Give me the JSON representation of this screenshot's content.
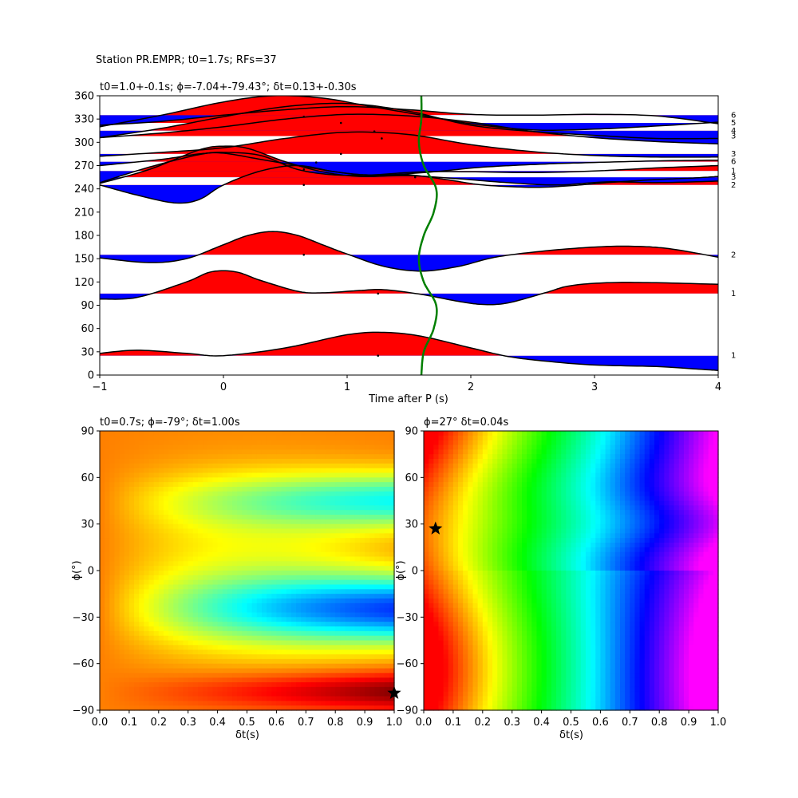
{
  "suptitle": "Station PR.EMPR; t0=1.7s; RFs=37",
  "chart_data": [
    {
      "type": "line",
      "title": "t0=1.0+-0.1s; ϕ=-7.04+-79.43°; δt=0.13+-0.30s",
      "xlabel": "Time after P (s)",
      "ylabel": "",
      "xlim": [
        -1,
        4
      ],
      "ylim": [
        0,
        360
      ],
      "x_ticks": [
        "−1",
        "0",
        "1",
        "2",
        "3",
        "4"
      ],
      "y_ticks": [
        "0",
        "30",
        "60",
        "90",
        "120",
        "150",
        "180",
        "210",
        "240",
        "270",
        "300",
        "330",
        "360"
      ],
      "traces": [
        {
          "baseline": 25,
          "count": "1",
          "pts": [
            [
              -1,
              28
            ],
            [
              -0.7,
              32
            ],
            [
              -0.3,
              28
            ],
            [
              0,
              25
            ],
            [
              0.5,
              35
            ],
            [
              1,
              52
            ],
            [
              1.3,
              55
            ],
            [
              1.6,
              50
            ],
            [
              2,
              35
            ],
            [
              2.3,
              24
            ],
            [
              2.6,
              18
            ],
            [
              3,
              13
            ],
            [
              3.5,
              11
            ],
            [
              3.8,
              8
            ],
            [
              4,
              6
            ]
          ]
        },
        {
          "baseline": 105,
          "count": "1",
          "pts": [
            [
              -1,
              98
            ],
            [
              -0.7,
              100
            ],
            [
              -0.3,
              120
            ],
            [
              -0.1,
              133
            ],
            [
              0.1,
              133
            ],
            [
              0.3,
              122
            ],
            [
              0.6,
              108
            ],
            [
              0.8,
              106
            ],
            [
              1.1,
              109
            ],
            [
              1.3,
              110
            ],
            [
              1.6,
              104
            ],
            [
              1.9,
              95
            ],
            [
              2.1,
              91
            ],
            [
              2.3,
              93
            ],
            [
              2.6,
              106
            ],
            [
              2.8,
              115
            ],
            [
              3.1,
              119
            ],
            [
              3.5,
              119
            ],
            [
              4,
              117
            ]
          ]
        },
        {
          "baseline": 155,
          "count": "2",
          "pts": [
            [
              -1,
              151
            ],
            [
              -0.6,
              145
            ],
            [
              -0.3,
              150
            ],
            [
              0,
              168
            ],
            [
              0.2,
              180
            ],
            [
              0.4,
              185
            ],
            [
              0.6,
              180
            ],
            [
              0.8,
              168
            ],
            [
              1.0,
              156
            ],
            [
              1.3,
              140
            ],
            [
              1.6,
              134
            ],
            [
              1.9,
              140
            ],
            [
              2.2,
              152
            ],
            [
              2.6,
              160
            ],
            [
              3,
              165
            ],
            [
              3.3,
              166
            ],
            [
              3.6,
              163
            ],
            [
              4,
              152
            ]
          ]
        },
        {
          "baseline": 245,
          "count": "2",
          "pts": [
            [
              -1,
              245
            ],
            [
              -0.7,
              232
            ],
            [
              -0.4,
              222
            ],
            [
              -0.2,
              226
            ],
            [
              0,
              245
            ],
            [
              0.3,
              263
            ],
            [
              0.6,
              270
            ],
            [
              0.9,
              262
            ],
            [
              1.2,
              257
            ],
            [
              1.5,
              258
            ],
            [
              1.8,
              252
            ],
            [
              2.1,
              245
            ],
            [
              2.5,
              242
            ],
            [
              2.8,
              244
            ],
            [
              3.1,
              248
            ],
            [
              3.5,
              252
            ],
            [
              3.8,
              254
            ],
            [
              4,
              256
            ]
          ]
        },
        {
          "baseline": 255,
          "count": "3",
          "pts": [
            [
              -1,
              247
            ],
            [
              -0.6,
              265
            ],
            [
              -0.2,
              290
            ],
            [
              0,
              295
            ],
            [
              0.2,
              292
            ],
            [
              0.5,
              275
            ],
            [
              0.8,
              262
            ],
            [
              1.1,
              256
            ],
            [
              1.5,
              257
            ],
            [
              1.9,
              253
            ],
            [
              2.3,
              248
            ],
            [
              2.7,
              245
            ],
            [
              3.1,
              249
            ],
            [
              3.5,
              248
            ],
            [
              4,
              250
            ]
          ]
        },
        {
          "baseline": 263,
          "count": "1",
          "pts": [
            [
              -1,
              248
            ],
            [
              -0.6,
              268
            ],
            [
              -0.2,
              284
            ],
            [
              0,
              287
            ],
            [
              0.3,
              283
            ],
            [
              0.6,
              265
            ],
            [
              0.9,
              258
            ],
            [
              1.2,
              258
            ],
            [
              1.6,
              262
            ],
            [
              2,
              262
            ],
            [
              2.5,
              261
            ],
            [
              3,
              263
            ],
            [
              3.5,
              267
            ],
            [
              4,
              270
            ]
          ]
        },
        {
          "baseline": 275,
          "count": "6",
          "pts": [
            [
              -1,
              270
            ],
            [
              -0.5,
              278
            ],
            [
              -0.2,
              285
            ],
            [
              0,
              286
            ],
            [
              0.3,
              278
            ],
            [
              0.6,
              270
            ],
            [
              1,
              260
            ],
            [
              1.3,
              258
            ],
            [
              1.7,
              262
            ],
            [
              2.1,
              268
            ],
            [
              2.6,
              272
            ],
            [
              3,
              274
            ],
            [
              3.5,
              276
            ],
            [
              4,
              277
            ]
          ]
        },
        {
          "baseline": 285,
          "count": "3",
          "pts": [
            [
              -1,
              282
            ],
            [
              -0.5,
              287
            ],
            [
              0,
              293
            ],
            [
              0.5,
              305
            ],
            [
              1,
              313
            ],
            [
              1.5,
              310
            ],
            [
              2,
              297
            ],
            [
              2.5,
              288
            ],
            [
              3,
              283
            ],
            [
              3.5,
              281
            ],
            [
              4,
              281
            ]
          ]
        },
        {
          "baseline": 308,
          "count": "3",
          "pts": [
            [
              -1,
              306
            ],
            [
              -0.5,
              312
            ],
            [
              0,
              320
            ],
            [
              0.5,
              330
            ],
            [
              1,
              336
            ],
            [
              1.5,
              334
            ],
            [
              2,
              326
            ],
            [
              2.5,
              314
            ],
            [
              3,
              306
            ],
            [
              3.5,
              301
            ],
            [
              4,
              298
            ]
          ]
        },
        {
          "baseline": 315,
          "count": "4",
          "pts": [
            [
              -1,
              306
            ],
            [
              -0.5,
              318
            ],
            [
              0,
              333
            ],
            [
              0.5,
              346
            ],
            [
              1,
              350
            ],
            [
              1.5,
              340
            ],
            [
              2,
              322
            ],
            [
              2.5,
              314
            ],
            [
              3,
              309
            ],
            [
              3.5,
              305
            ],
            [
              4,
              305
            ]
          ]
        },
        {
          "baseline": 325,
          "count": "5",
          "pts": [
            [
              -1,
              320
            ],
            [
              -0.5,
              335
            ],
            [
              0,
              352
            ],
            [
              0.4,
              360
            ],
            [
              0.8,
              357
            ],
            [
              1.2,
              346
            ],
            [
              1.6,
              335
            ],
            [
              2,
              324
            ],
            [
              2.5,
              316
            ],
            [
              3,
              317
            ],
            [
              3.5,
              321
            ],
            [
              4,
              326
            ]
          ]
        },
        {
          "baseline": 335,
          "count": "6",
          "pts": [
            [
              -1,
              322
            ],
            [
              -0.5,
              327
            ],
            [
              0,
              335
            ],
            [
              0.5,
              342
            ],
            [
              1,
              346
            ],
            [
              1.5,
              342
            ],
            [
              2,
              336
            ],
            [
              2.5,
              335
            ],
            [
              3,
              336
            ],
            [
              3.5,
              334
            ],
            [
              4,
              324
            ]
          ]
        }
      ],
      "markers": [
        [
          0.65,
          333
        ],
        [
          0.95,
          325
        ],
        [
          1.22,
          314
        ],
        [
          1.28,
          305
        ],
        [
          0.95,
          285
        ],
        [
          0.75,
          274
        ],
        [
          0.65,
          265
        ],
        [
          1.55,
          255
        ],
        [
          0.65,
          245
        ],
        [
          0.65,
          155
        ],
        [
          1.25,
          105
        ],
        [
          1.25,
          25
        ]
      ],
      "t0_curve": [
        [
          1.6,
          0
        ],
        [
          1.62,
          30
        ],
        [
          1.7,
          60
        ],
        [
          1.72,
          90
        ],
        [
          1.62,
          120
        ],
        [
          1.58,
          150
        ],
        [
          1.62,
          180
        ],
        [
          1.7,
          210
        ],
        [
          1.72,
          240
        ],
        [
          1.62,
          270
        ],
        [
          1.58,
          300
        ],
        [
          1.6,
          330
        ],
        [
          1.6,
          360
        ]
      ],
      "colors": {
        "positive": "#ff0000",
        "negative": "#0000ff",
        "trace": "#000000",
        "t0": "#007f00"
      }
    },
    {
      "type": "heatmap",
      "title": "t0=0.7s; ϕ=-79°; δt=1.00s",
      "xlabel": "δt(s)",
      "ylabel": "ϕ(°)",
      "xlim": [
        0,
        1
      ],
      "ylim": [
        -90,
        90
      ],
      "x_ticks": [
        "0.0",
        "0.1",
        "0.2",
        "0.3",
        "0.4",
        "0.5",
        "0.6",
        "0.7",
        "0.8",
        "0.9",
        "1.0"
      ],
      "y_ticks": [
        "−90",
        "−60",
        "−30",
        "0",
        "30",
        "60",
        "90"
      ],
      "best": {
        "dt": 1.0,
        "phi": -79
      },
      "colormap": "jet-like"
    },
    {
      "type": "heatmap",
      "title": "ϕ=27° δt=0.04s",
      "xlabel": "δt(s)",
      "ylabel": "ϕ(°)",
      "xlim": [
        0,
        1
      ],
      "ylim": [
        -90,
        90
      ],
      "x_ticks": [
        "0.0",
        "0.1",
        "0.2",
        "0.3",
        "0.4",
        "0.5",
        "0.6",
        "0.7",
        "0.8",
        "0.9",
        "1.0"
      ],
      "y_ticks": [
        "−90",
        "−60",
        "−30",
        "0",
        "30",
        "60",
        "90"
      ],
      "best": {
        "dt": 0.04,
        "phi": 27
      },
      "colormap": "hsv-like"
    }
  ]
}
